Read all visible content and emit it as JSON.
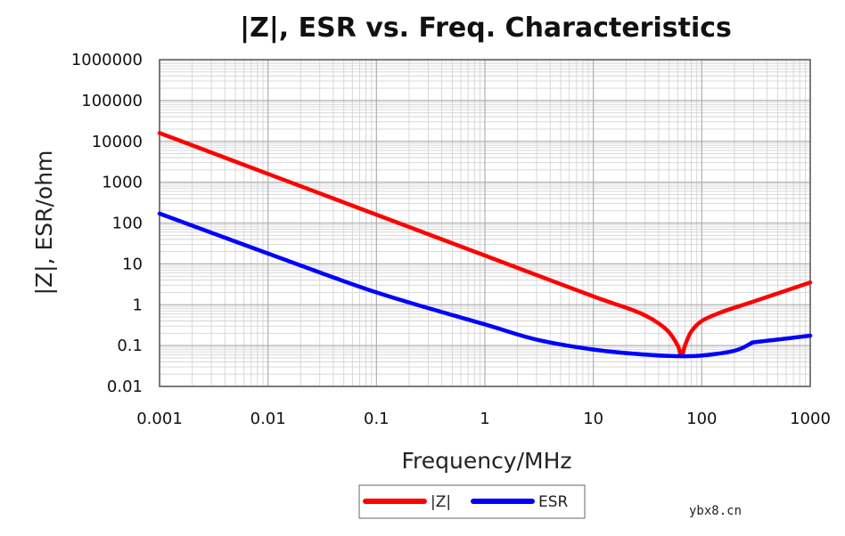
{
  "chart_data": {
    "type": "line",
    "title": "|Z|, ESR vs. Freq. Characteristics",
    "xlabel": "Frequency/MHz",
    "ylabel": "|Z|, ESR/ohm",
    "x_scale": "log",
    "y_scale": "log",
    "xlim": [
      0.001,
      1000
    ],
    "ylim": [
      0.01,
      1000000
    ],
    "x_ticks": [
      "0.001",
      "0.01",
      "0.1",
      "1",
      "10",
      "100",
      "1000"
    ],
    "y_ticks": [
      "1000000",
      "100000",
      "10000",
      "1000",
      "100",
      "10",
      "1",
      "0.1",
      "0.01"
    ],
    "grid": true,
    "legend_position": "bottom-center",
    "series": [
      {
        "name": "|Z|",
        "color": "#ff0000",
        "x": [
          0.001,
          0.01,
          0.1,
          1,
          10,
          20,
          30,
          40,
          50,
          60,
          65,
          70,
          80,
          100,
          150,
          300,
          1000
        ],
        "y": [
          16000,
          1600,
          160,
          16,
          1.6,
          0.85,
          0.55,
          0.35,
          0.21,
          0.1,
          0.055,
          0.1,
          0.22,
          0.4,
          0.65,
          1.2,
          3.5
        ]
      },
      {
        "name": "ESR",
        "color": "#0000ff",
        "x": [
          0.001,
          0.01,
          0.1,
          1,
          3,
          10,
          30,
          60,
          100,
          200,
          280,
          300,
          500,
          1000
        ],
        "y": [
          170,
          18,
          2,
          0.33,
          0.14,
          0.08,
          0.06,
          0.055,
          0.057,
          0.075,
          0.11,
          0.12,
          0.14,
          0.175
        ]
      }
    ]
  },
  "watermark": "ybx8.cn"
}
